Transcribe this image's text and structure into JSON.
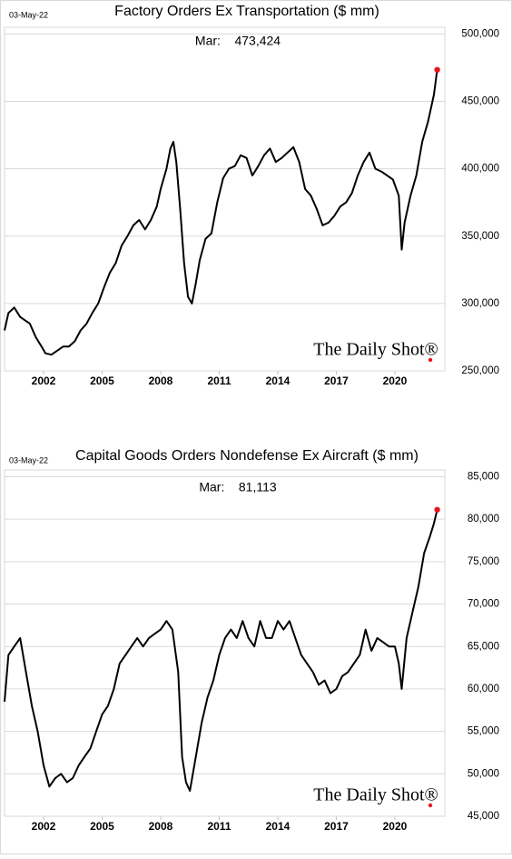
{
  "chart_data": [
    {
      "type": "line",
      "date": "03-May-22",
      "title": "Factory Orders Ex Transportation ($ mm)",
      "annotation": "Mar:    473,424",
      "watermark": "The Daily Shot®",
      "color": "#000000",
      "last_point_color": "#e8141c",
      "grid": true,
      "xlim": [
        2000,
        2022.56
      ],
      "xticks": [
        2002,
        2005,
        2008,
        2011,
        2014,
        2017,
        2020
      ],
      "ylim": [
        250000,
        505000
      ],
      "yticks": [
        {
          "value": 250000,
          "label": "250,000"
        },
        {
          "value": 300000,
          "label": "300,000"
        },
        {
          "value": 350000,
          "label": "350,000"
        },
        {
          "value": 400000,
          "label": "400,000"
        },
        {
          "value": 450000,
          "label": "450,000"
        },
        {
          "value": 500000,
          "label": "500,000"
        }
      ],
      "x": [
        2000.0,
        2000.2,
        2000.5,
        2000.8,
        2001.0,
        2001.3,
        2001.6,
        2001.9,
        2002.1,
        2002.4,
        2002.7,
        2003.0,
        2003.3,
        2003.6,
        2003.9,
        2004.2,
        2004.5,
        2004.8,
        2005.1,
        2005.4,
        2005.7,
        2006.0,
        2006.3,
        2006.6,
        2006.9,
        2007.2,
        2007.5,
        2007.8,
        2008.0,
        2008.3,
        2008.5,
        2008.65,
        2008.8,
        2009.0,
        2009.2,
        2009.4,
        2009.6,
        2009.8,
        2010.0,
        2010.3,
        2010.6,
        2010.9,
        2011.2,
        2011.5,
        2011.8,
        2012.1,
        2012.4,
        2012.7,
        2013.0,
        2013.3,
        2013.6,
        2013.9,
        2014.2,
        2014.5,
        2014.8,
        2015.1,
        2015.4,
        2015.7,
        2016.0,
        2016.3,
        2016.6,
        2016.9,
        2017.2,
        2017.5,
        2017.8,
        2018.1,
        2018.4,
        2018.7,
        2019.0,
        2019.3,
        2019.6,
        2019.9,
        2020.2,
        2020.35,
        2020.5,
        2020.8,
        2021.1,
        2021.4,
        2021.7,
        2022.0,
        2022.17
      ],
      "values": [
        280000,
        293000,
        297000,
        290000,
        288000,
        285000,
        275000,
        268000,
        263000,
        262000,
        265000,
        268000,
        268000,
        272000,
        280000,
        285000,
        293000,
        300000,
        312000,
        323000,
        330000,
        343000,
        350000,
        358000,
        362000,
        355000,
        362000,
        372000,
        385000,
        400000,
        415000,
        420000,
        405000,
        370000,
        330000,
        305000,
        300000,
        315000,
        332000,
        348000,
        352000,
        375000,
        393000,
        400000,
        402000,
        410000,
        408000,
        395000,
        402000,
        410000,
        415000,
        405000,
        408000,
        412000,
        416000,
        405000,
        385000,
        380000,
        370000,
        358000,
        360000,
        365000,
        372000,
        375000,
        382000,
        395000,
        405000,
        412000,
        400000,
        398000,
        395000,
        392000,
        380000,
        340000,
        360000,
        380000,
        395000,
        420000,
        435000,
        455000,
        473424
      ]
    },
    {
      "type": "line",
      "date": "03-May-22",
      "title": "Capital Goods Orders Nondefense Ex Aircraft ($ mm)",
      "annotation": "Mar:    81,113",
      "watermark": "The Daily Shot®",
      "color": "#000000",
      "last_point_color": "#e8141c",
      "grid": true,
      "xlim": [
        2000,
        2022.56
      ],
      "xticks": [
        2002,
        2005,
        2008,
        2011,
        2014,
        2017,
        2020
      ],
      "ylim": [
        45000,
        85800
      ],
      "yticks": [
        {
          "value": 45000,
          "label": "45,000"
        },
        {
          "value": 50000,
          "label": "50,000"
        },
        {
          "value": 55000,
          "label": "55,000"
        },
        {
          "value": 60000,
          "label": "60,000"
        },
        {
          "value": 65000,
          "label": "65,000"
        },
        {
          "value": 70000,
          "label": "70,000"
        },
        {
          "value": 75000,
          "label": "75,000"
        },
        {
          "value": 80000,
          "label": "80,000"
        },
        {
          "value": 85000,
          "label": "85,000"
        }
      ],
      "x": [
        2000.0,
        2000.2,
        2000.5,
        2000.8,
        2001.1,
        2001.4,
        2001.7,
        2002.0,
        2002.3,
        2002.6,
        2002.9,
        2003.2,
        2003.5,
        2003.8,
        2004.1,
        2004.4,
        2004.7,
        2005.0,
        2005.3,
        2005.6,
        2005.9,
        2006.2,
        2006.5,
        2006.8,
        2007.1,
        2007.4,
        2007.7,
        2008.0,
        2008.3,
        2008.6,
        2008.9,
        2009.1,
        2009.3,
        2009.5,
        2009.8,
        2010.1,
        2010.4,
        2010.7,
        2011.0,
        2011.3,
        2011.6,
        2011.9,
        2012.2,
        2012.5,
        2012.8,
        2013.1,
        2013.4,
        2013.7,
        2014.0,
        2014.3,
        2014.6,
        2014.9,
        2015.2,
        2015.5,
        2015.8,
        2016.1,
        2016.4,
        2016.7,
        2017.0,
        2017.3,
        2017.6,
        2017.9,
        2018.2,
        2018.5,
        2018.8,
        2019.1,
        2019.4,
        2019.7,
        2020.0,
        2020.2,
        2020.35,
        2020.6,
        2020.9,
        2021.2,
        2021.5,
        2021.8,
        2022.0,
        2022.17
      ],
      "values": [
        58500,
        64000,
        65000,
        66000,
        62000,
        58000,
        55000,
        51000,
        48500,
        49500,
        50000,
        49000,
        49500,
        51000,
        52000,
        53000,
        55000,
        57000,
        58000,
        60000,
        63000,
        64000,
        65000,
        66000,
        65000,
        66000,
        66500,
        67000,
        68000,
        67000,
        62000,
        52000,
        49000,
        48000,
        52000,
        56000,
        59000,
        61000,
        64000,
        66000,
        67000,
        66000,
        68000,
        66000,
        65000,
        68000,
        66000,
        66000,
        68000,
        67000,
        68000,
        66000,
        64000,
        63000,
        62000,
        60500,
        61000,
        59500,
        60000,
        61500,
        62000,
        63000,
        64000,
        67000,
        64500,
        66000,
        65500,
        65000,
        65000,
        63000,
        60000,
        66000,
        69000,
        72000,
        76000,
        78000,
        79500,
        81113
      ]
    }
  ]
}
